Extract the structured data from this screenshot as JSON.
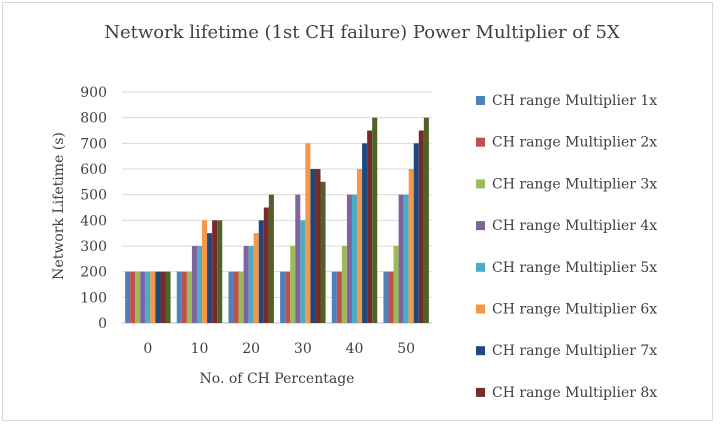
{
  "chart_data": {
    "type": "bar",
    "title": "Network lifetime (1st CH failure) Power Multiplier of 5X",
    "xlabel": "No. of CH Percentage",
    "ylabel": "Network Lifetime (s)",
    "ylim": [
      0,
      900
    ],
    "yticks": [
      0,
      100,
      200,
      300,
      400,
      500,
      600,
      700,
      800,
      900
    ],
    "grid": true,
    "legend_position": "right",
    "categories": [
      "0",
      "10",
      "20",
      "30",
      "40",
      "50"
    ],
    "series": [
      {
        "name": "CH range Multiplier 1x",
        "color": "#4f81bd",
        "values": [
          200,
          200,
          200,
          200,
          200,
          200
        ]
      },
      {
        "name": "CH range Multiplier 2x",
        "color": "#c0504d",
        "values": [
          200,
          200,
          200,
          200,
          200,
          200
        ]
      },
      {
        "name": "CH range Multiplier 3x",
        "color": "#9bbb59",
        "values": [
          200,
          200,
          200,
          300,
          300,
          300
        ]
      },
      {
        "name": "CH range Multiplier 4x",
        "color": "#8064a2",
        "values": [
          200,
          300,
          300,
          500,
          500,
          500
        ]
      },
      {
        "name": "CH range Multiplier 5x",
        "color": "#4bacc6",
        "values": [
          200,
          300,
          300,
          400,
          500,
          500
        ]
      },
      {
        "name": "CH range Multiplier 6x",
        "color": "#f79646",
        "values": [
          200,
          400,
          350,
          700,
          600,
          600
        ]
      },
      {
        "name": "CH range Multiplier 7x",
        "color": "#1f497d",
        "values": [
          200,
          350,
          400,
          600,
          700,
          700
        ]
      },
      {
        "name": "CH range Multiplier 8x",
        "color": "#772c2a",
        "values": [
          200,
          400,
          450,
          600,
          750,
          750
        ]
      },
      {
        "name": "",
        "color": "#4f6228",
        "values": [
          200,
          400,
          500,
          550,
          800,
          800
        ]
      }
    ]
  }
}
